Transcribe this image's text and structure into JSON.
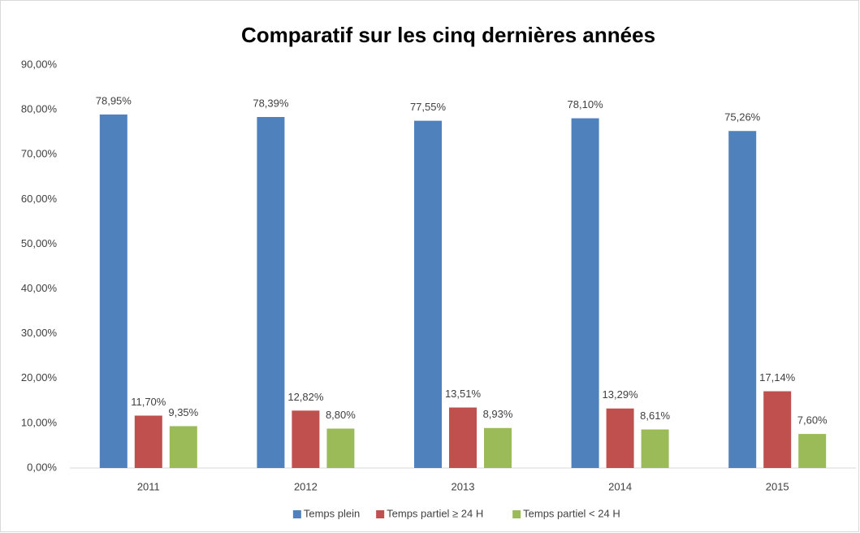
{
  "chart_data": {
    "type": "bar",
    "title": "Comparatif sur les cinq dernières années",
    "categories": [
      "2011",
      "2012",
      "2013",
      "2014",
      "2015"
    ],
    "series": [
      {
        "name": "Temps plein",
        "color": "#4f81bd",
        "values": [
          78.95,
          78.39,
          77.55,
          78.1,
          75.26
        ],
        "value_labels": [
          "78,95%",
          "78,39%",
          "77,55%",
          "78,10%",
          "75,26%"
        ]
      },
      {
        "name": "Temps partiel ≥ 24 H",
        "color": "#c0504d",
        "values": [
          11.7,
          12.82,
          13.51,
          13.29,
          17.14
        ],
        "value_labels": [
          "11,70%",
          "12,82%",
          "13,51%",
          "13,29%",
          "17,14%"
        ]
      },
      {
        "name": "Temps partiel < 24 H",
        "color": "#9bbb59",
        "values": [
          9.35,
          8.8,
          8.93,
          8.61,
          7.6
        ],
        "value_labels": [
          "9,35%",
          "8,80%",
          "8,93%",
          "8,61%",
          "7,60%"
        ]
      }
    ],
    "ylim": [
      0,
      90
    ],
    "yticks": [
      {
        "value": 0,
        "label": "0,00%"
      },
      {
        "value": 10,
        "label": "10,00%"
      },
      {
        "value": 20,
        "label": "20,00%"
      },
      {
        "value": 30,
        "label": "30,00%"
      },
      {
        "value": 40,
        "label": "40,00%"
      },
      {
        "value": 50,
        "label": "50,00%"
      },
      {
        "value": 60,
        "label": "60,00%"
      },
      {
        "value": 70,
        "label": "70,00%"
      },
      {
        "value": 80,
        "label": "80,00%"
      },
      {
        "value": 90,
        "label": "90,00%"
      }
    ],
    "legend": "bottom"
  }
}
